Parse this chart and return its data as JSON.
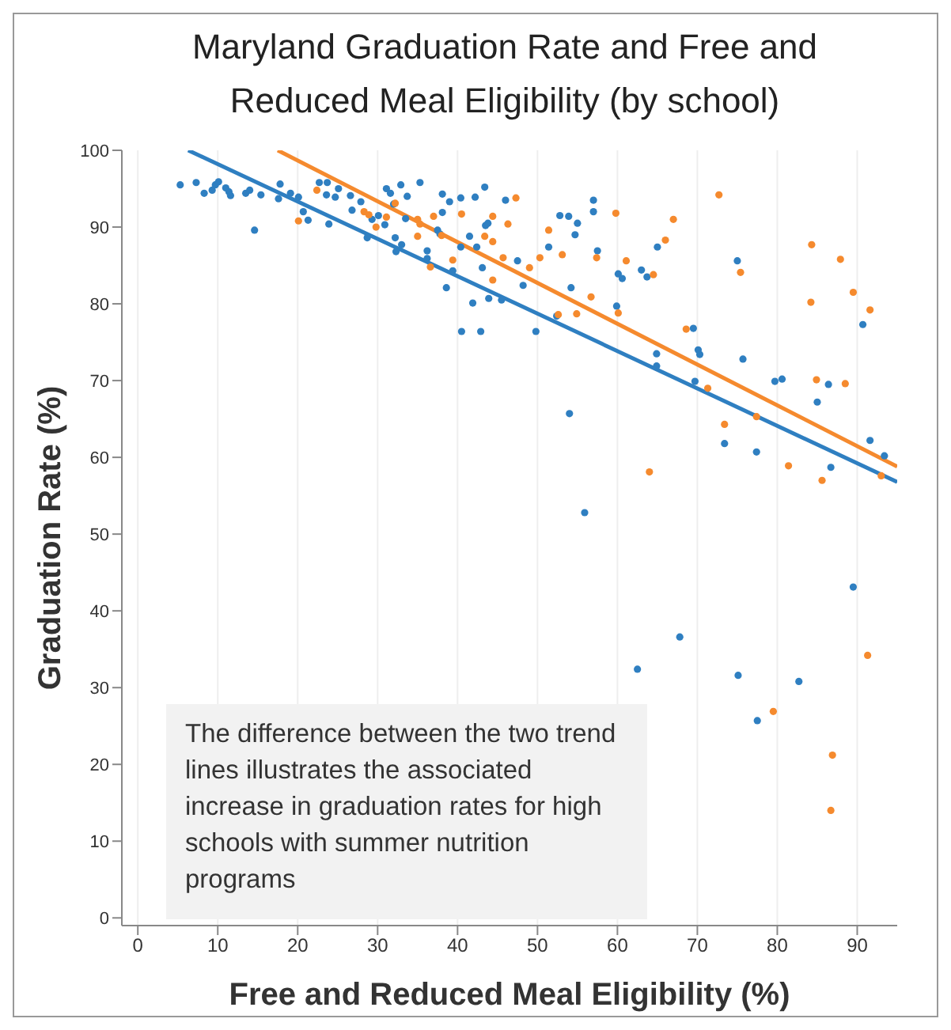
{
  "chart_data": {
    "type": "scatter",
    "title": "Maryland Graduation Rate and Free and Reduced Meal Eligibility (by school)",
    "xlabel": "Free and Reduced Meal Eligibility (%)",
    "ylabel": "Graduation Rate (%)",
    "xlim": [
      -2,
      95
    ],
    "xticks": [
      0,
      10,
      20,
      30,
      40,
      50,
      60,
      70,
      80,
      90
    ],
    "ylim": [
      -1,
      100
    ],
    "yticks": [
      0,
      10,
      20,
      30,
      40,
      50,
      60,
      70,
      80,
      90,
      100
    ],
    "grid": "x",
    "annotations": [
      "The difference between the two trend lines illustrates the associated increase in graduation rates for high schools with summer nutrition programs"
    ],
    "series": [
      {
        "marker": "circle",
        "color": "#2f7fc1",
        "x": [
          5.3,
          7.3,
          8.3,
          9.3,
          9.7,
          10.1,
          11.0,
          11.4,
          11.6,
          13.5,
          14.0,
          15.4,
          17.8,
          17.6,
          19.1,
          20.1,
          20.7,
          21.3,
          22.7,
          23.7,
          23.6,
          24.7,
          25.1,
          26.6,
          26.8,
          27.9,
          28.7,
          29.3,
          30.1,
          30.9,
          31.1,
          31.6,
          32.0,
          32.2,
          32.9,
          32.3,
          33.0,
          14.6,
          23.9,
          33.5,
          33.7,
          35.3,
          36.2,
          36.2,
          37.5,
          37.8,
          38.1,
          39.0,
          38.1,
          38.6,
          39.4,
          40.4,
          40.4,
          41.5,
          42.2,
          42.4,
          43.4,
          43.5,
          43.8,
          41.9,
          40.5,
          42.9,
          43.1,
          43.9,
          45.5,
          46.0,
          47.5,
          48.2,
          49.8,
          51.4,
          52.8,
          53.9,
          55.0,
          54.7,
          54.2,
          52.4,
          57.0,
          57.0,
          57.5,
          59.9,
          60.1,
          60.6,
          63.0,
          63.7,
          65.0,
          75.0,
          69.5,
          90.7,
          70.1,
          64.9,
          70.3,
          75.7,
          64.9,
          69.7,
          79.7,
          80.6,
          85.0,
          86.4,
          73.4,
          77.4,
          86.7,
          91.6,
          93.4,
          89.5,
          67.8,
          62.5,
          75.1,
          82.7,
          77.5,
          54.0,
          55.9
        ],
        "values": [
          95.5,
          95.8,
          94.4,
          94.8,
          95.5,
          95.9,
          95.1,
          94.6,
          94.1,
          94.4,
          94.8,
          94.2,
          95.6,
          93.7,
          94.4,
          93.9,
          92.0,
          90.9,
          95.8,
          95.8,
          94.2,
          93.9,
          95.0,
          94.1,
          92.2,
          93.3,
          88.6,
          91.0,
          91.5,
          90.3,
          95.0,
          94.4,
          93.0,
          88.6,
          95.5,
          86.8,
          87.7,
          89.6,
          90.4,
          91.1,
          94.0,
          95.8,
          86.9,
          85.9,
          89.6,
          89.1,
          94.3,
          93.3,
          91.9,
          82.1,
          84.3,
          93.8,
          87.4,
          88.8,
          93.9,
          87.4,
          95.2,
          90.2,
          90.5,
          80.1,
          76.4,
          76.4,
          84.7,
          80.7,
          80.5,
          93.5,
          85.6,
          82.4,
          76.4,
          87.4,
          91.5,
          91.4,
          90.5,
          89.0,
          82.1,
          78.4,
          93.5,
          92.0,
          86.9,
          79.7,
          83.9,
          83.3,
          84.4,
          83.5,
          87.4,
          85.6,
          76.8,
          77.3,
          74.0,
          73.5,
          73.4,
          72.8,
          71.9,
          69.9,
          69.9,
          70.2,
          67.2,
          69.5,
          61.8,
          60.7,
          58.7,
          62.2,
          60.2,
          43.1,
          36.6,
          32.4,
          31.6,
          30.8,
          25.7,
          65.7,
          52.8
        ]
      },
      {
        "marker": "circle",
        "color": "#f58a2e",
        "x": [
          22.4,
          20.1,
          28.3,
          28.9,
          29.8,
          30.9,
          31.1,
          32.2,
          35.0,
          35.3,
          37.0,
          35.0,
          38.0,
          36.6,
          39.4,
          40.5,
          44.4,
          43.4,
          44.4,
          46.3,
          47.3,
          45.7,
          44.4,
          49.0,
          50.3,
          51.4,
          53.1,
          52.6,
          54.9,
          56.7,
          57.4,
          59.8,
          60.1,
          61.1,
          64.5,
          66.0,
          67.0,
          72.7,
          75.4,
          84.3,
          87.9,
          89.5,
          91.6,
          84.2,
          68.6,
          71.3,
          73.4,
          77.4,
          64.0,
          81.4,
          84.9,
          88.5,
          85.6,
          93.0,
          91.3,
          79.5,
          86.9,
          86.7
        ],
        "values": [
          94.8,
          90.8,
          92.0,
          91.6,
          90.0,
          null,
          91.3,
          93.1,
          91.0,
          90.4,
          91.4,
          88.8,
          88.9,
          84.8,
          85.7,
          91.7,
          91.4,
          88.8,
          88.1,
          90.4,
          93.8,
          86.0,
          83.1,
          84.7,
          86.0,
          89.6,
          86.4,
          78.6,
          78.7,
          80.9,
          86.0,
          91.8,
          78.8,
          85.6,
          83.8,
          88.3,
          91.0,
          94.2,
          84.1,
          87.7,
          85.8,
          81.5,
          79.2,
          80.2,
          76.7,
          69.0,
          64.3,
          65.3,
          58.1,
          58.9,
          70.1,
          69.6,
          57.0,
          57.6,
          34.2,
          26.9,
          21.2,
          14.0
        ]
      },
      {
        "type": "line",
        "marker": "none",
        "color": "#2f7fc1",
        "x": [
          6.3,
          95
        ],
        "values": [
          100,
          56.8
        ]
      },
      {
        "type": "line",
        "marker": "none",
        "color": "#f58a2e",
        "x": [
          17.5,
          95
        ],
        "values": [
          100,
          58.8
        ]
      }
    ]
  }
}
